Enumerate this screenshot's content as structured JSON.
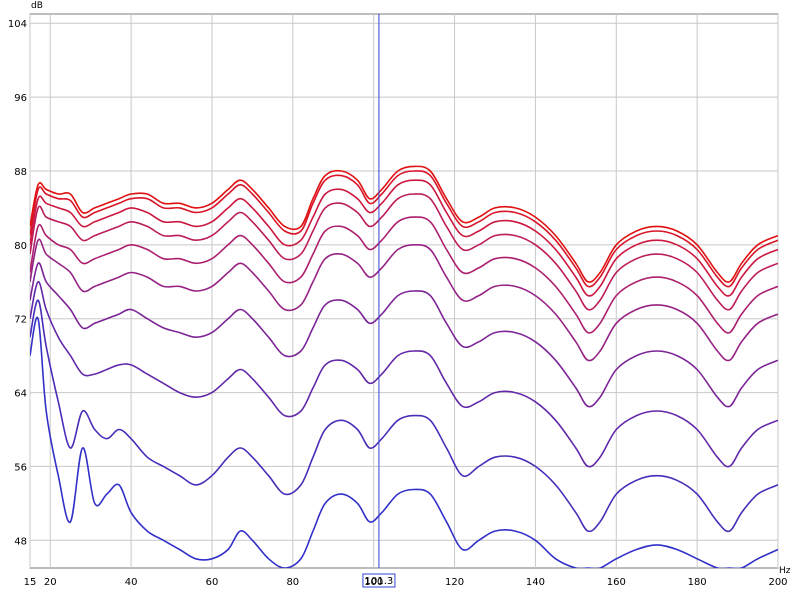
{
  "chart_data": {
    "type": "line",
    "title": "",
    "xlabel": "",
    "ylabel": "",
    "x_unit": "Hz",
    "y_unit": "dB",
    "xlim": [
      15,
      200
    ],
    "ylim": [
      45,
      105
    ],
    "x_ticks": [
      15,
      20,
      40,
      60,
      80,
      100,
      120,
      140,
      160,
      180,
      200
    ],
    "y_ticks": [
      48,
      56,
      64,
      72,
      80,
      88,
      96,
      104
    ],
    "grid": true,
    "legend": "none",
    "cursor": {
      "x": 101.3,
      "label": "101.3",
      "color": "#3344cc"
    },
    "x": [
      15,
      17,
      19,
      22,
      25,
      28,
      31,
      34,
      37,
      40,
      44,
      48,
      52,
      56,
      60,
      64,
      67,
      70,
      74,
      78,
      82,
      85,
      88,
      92,
      96,
      99,
      102,
      106,
      110,
      114,
      118,
      122,
      126,
      130,
      135,
      140,
      145,
      150,
      153,
      156,
      160,
      165,
      170,
      175,
      180,
      185,
      188,
      191,
      195,
      200
    ],
    "series": [
      {
        "color": "#e01010",
        "values": [
          82,
          86.5,
          86,
          85.5,
          85.5,
          83.5,
          84,
          84.5,
          85,
          85.5,
          85.5,
          84.5,
          84.5,
          84,
          84.5,
          86,
          87,
          86,
          84,
          82,
          82,
          85,
          87.5,
          88,
          87,
          85,
          86,
          88,
          88.5,
          88,
          85,
          82.5,
          83,
          84,
          84,
          83,
          81,
          78,
          76,
          77,
          80,
          81.5,
          82,
          81.5,
          80,
          77,
          76,
          78,
          80,
          81
        ]
      },
      {
        "color": "#d81428",
        "values": [
          81,
          86,
          85.5,
          85,
          84.8,
          83,
          83.5,
          84,
          84.5,
          85,
          85,
          84,
          84,
          83.5,
          84,
          85.5,
          86.5,
          85.5,
          83.5,
          81.5,
          81.5,
          84.5,
          87,
          87.5,
          86.5,
          84.5,
          85.5,
          87.5,
          88,
          87.5,
          84.5,
          82,
          82.5,
          83.5,
          83.5,
          82.5,
          80.5,
          77.5,
          75.5,
          76.5,
          79.5,
          81,
          81.5,
          81,
          79.5,
          76.5,
          75.5,
          77.5,
          79.5,
          80.5
        ]
      },
      {
        "color": "#cc1840",
        "values": [
          80,
          85,
          84.5,
          84,
          83.5,
          82,
          82.5,
          83,
          83.5,
          84,
          83.5,
          82.5,
          82.5,
          82,
          82.5,
          84,
          85,
          84,
          82,
          80,
          80.5,
          83,
          85.5,
          86,
          85,
          83.5,
          84.5,
          86.5,
          87,
          86.5,
          83.5,
          81,
          81.5,
          82.5,
          82.5,
          81.5,
          79.5,
          76.5,
          74.5,
          75.5,
          78.5,
          80,
          80.5,
          80,
          78.5,
          75.5,
          74.5,
          76.5,
          78.5,
          79.5
        ]
      },
      {
        "color": "#bc1c5a",
        "values": [
          79,
          84,
          83,
          82.5,
          82,
          80.5,
          81,
          81.5,
          82,
          82.5,
          82,
          81,
          81,
          80.5,
          81,
          82.5,
          83.5,
          82.5,
          80.5,
          78.5,
          79,
          81.5,
          84,
          84.5,
          83.5,
          82,
          83,
          85,
          85.5,
          85,
          82,
          79.5,
          80,
          81,
          81,
          80,
          78,
          75,
          73,
          74,
          77,
          78.5,
          79,
          78.5,
          77,
          74,
          73,
          75,
          77,
          78
        ]
      },
      {
        "color": "#ac1e6e",
        "values": [
          77,
          82,
          81,
          80,
          79.5,
          78,
          78.5,
          79,
          79.5,
          80,
          79.5,
          78.5,
          78.5,
          78,
          78.5,
          80,
          81,
          80,
          78,
          76,
          76.5,
          79,
          81.5,
          82,
          81,
          79.5,
          80.5,
          82.5,
          83,
          82.5,
          79.5,
          77,
          77.5,
          78.5,
          78.5,
          77.5,
          75.5,
          72.5,
          70.5,
          71.5,
          74.5,
          76,
          76.5,
          76,
          74.5,
          71.5,
          70.5,
          72.5,
          74.5,
          75.5
        ]
      },
      {
        "color": "#962284",
        "values": [
          76,
          80.5,
          79,
          78,
          77,
          75,
          75.5,
          76,
          76.5,
          77,
          76.5,
          75.5,
          75.5,
          75,
          75.5,
          77,
          78,
          77,
          75,
          73,
          73.5,
          76,
          78.5,
          79,
          78,
          76.5,
          77.5,
          79.5,
          80,
          79.5,
          76.5,
          74,
          74.5,
          75.5,
          75.5,
          74.5,
          72.5,
          69.5,
          67.5,
          68.5,
          71.5,
          73,
          73.5,
          73,
          71.5,
          68.5,
          67.5,
          69.5,
          71.5,
          72.5
        ]
      },
      {
        "color": "#7c2496",
        "values": [
          74,
          78,
          76,
          74.5,
          73,
          71,
          71.5,
          72,
          72.5,
          73,
          72,
          71,
          70.5,
          70,
          70.5,
          72,
          73,
          72,
          70,
          68,
          68.5,
          71,
          73.5,
          74,
          73,
          71.5,
          72.5,
          74.5,
          75,
          74.5,
          71.5,
          69,
          69.5,
          70.5,
          70.5,
          69.5,
          67.5,
          64.5,
          62.5,
          63.5,
          66.5,
          68,
          68.5,
          68,
          66.5,
          63.5,
          62.5,
          64.5,
          66.5,
          67.5
        ]
      },
      {
        "color": "#6228a8",
        "values": [
          72,
          76,
          73,
          70,
          68,
          66,
          66,
          66.5,
          67,
          67,
          66,
          65,
          64,
          63.5,
          64,
          65.5,
          66.5,
          65.5,
          63.5,
          61.5,
          62,
          64.5,
          67,
          67.5,
          66.5,
          65,
          66,
          68,
          68.5,
          68,
          65,
          62.5,
          63,
          64,
          64,
          63,
          61,
          58,
          56,
          57,
          60,
          61.5,
          62,
          61.5,
          60,
          57,
          56,
          58,
          60,
          61
        ]
      },
      {
        "color": "#4a2cb8",
        "values": [
          70,
          74,
          69,
          63,
          58,
          62,
          60,
          59,
          60,
          59,
          57,
          56,
          55,
          54,
          55,
          57,
          58,
          57,
          55,
          53,
          54,
          57,
          60,
          61,
          60,
          58,
          59,
          61,
          61.5,
          61,
          58,
          55,
          56,
          57,
          57,
          56,
          54,
          51,
          49,
          50,
          53,
          54.5,
          55,
          54.5,
          53,
          50,
          49,
          51,
          53,
          54
        ]
      },
      {
        "color": "#3230c8",
        "values": [
          68,
          72,
          62,
          55,
          50,
          58,
          52,
          53,
          54,
          51,
          49,
          48,
          47,
          46,
          46,
          47,
          49,
          48,
          46,
          45,
          46,
          49,
          52,
          53,
          52,
          50,
          51,
          53,
          53.5,
          53,
          50,
          47,
          48,
          49,
          49,
          48,
          46,
          45,
          45,
          45,
          46,
          47,
          47.5,
          47,
          46,
          45,
          45,
          45,
          46,
          47
        ]
      }
    ]
  }
}
